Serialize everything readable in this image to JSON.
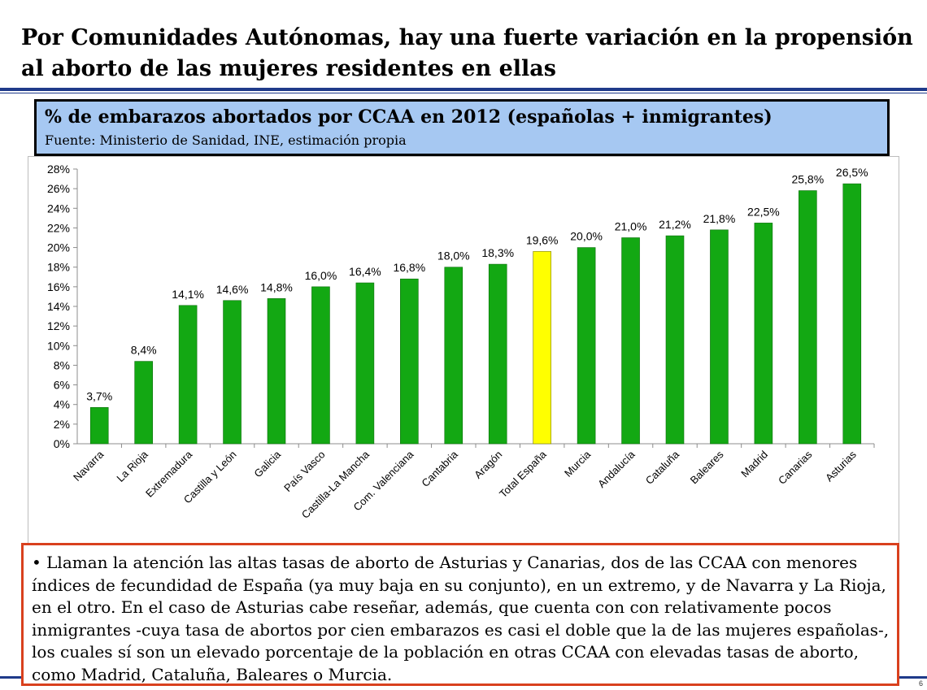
{
  "slide": {
    "title": "Por Comunidades Autónomas, hay una fuerte variación en la propensión al aborto de las mujeres residentes en ellas",
    "page_number": "6"
  },
  "header": {
    "title": "% de embarazos abortados por CCAA en 2012 (españolas + inmigrantes)",
    "source": "Fuente: Ministerio de Sanidad, INE, estimación propia"
  },
  "colors": {
    "bar": "#13a813",
    "highlight": "#ffff00",
    "header_bg": "#a6c8f2",
    "note_border": "#d9411e",
    "rule": "#1f3a8a"
  },
  "chart_data": {
    "type": "bar",
    "title": "% de embarazos abortados por CCAA en 2012 (españolas + inmigrantes)",
    "xlabel": "",
    "ylabel": "",
    "ylim": [
      0,
      28
    ],
    "y_ticks": [
      0,
      2,
      4,
      6,
      8,
      10,
      12,
      14,
      16,
      18,
      20,
      22,
      24,
      26,
      28
    ],
    "y_tick_labels": [
      "0%",
      "2%",
      "4%",
      "6%",
      "8%",
      "10%",
      "12%",
      "14%",
      "16%",
      "18%",
      "20%",
      "22%",
      "24%",
      "26%",
      "28%"
    ],
    "categories": [
      "Navarra",
      "La Rioja",
      "Extremadura",
      "Castilla y León",
      "Galicia",
      "País Vasco",
      "Castilla-La Mancha",
      "Com. Valenciana",
      "Cantabria",
      "Aragón",
      "Total España",
      "Murcia",
      "Andalucía",
      "Cataluña",
      "Baleares",
      "Madrid",
      "Canarias",
      "Asturias"
    ],
    "values": [
      3.7,
      8.4,
      14.1,
      14.6,
      14.8,
      16.0,
      16.4,
      16.8,
      18.0,
      18.3,
      19.6,
      20.0,
      21.0,
      21.2,
      21.8,
      22.5,
      25.8,
      26.5
    ],
    "data_labels": [
      "3,7%",
      "8,4%",
      "14,1%",
      "14,6%",
      "14,8%",
      "16,0%",
      "16,4%",
      "16,8%",
      "18,0%",
      "18,3%",
      "19,6%",
      "20,0%",
      "21,0%",
      "21,2%",
      "21,8%",
      "22,5%",
      "25,8%",
      "26,5%"
    ],
    "highlight_category": "Total España",
    "grid": false,
    "legend": "none"
  },
  "note": {
    "text": "• Llaman la atención las altas tasas de aborto de Asturias y Canarias, dos de las CCAA con menores índices de fecundidad de España (ya muy baja en su conjunto), en un extremo, y de Navarra y La Rioja, en el otro. En el caso de Asturias cabe reseñar, además, que cuenta con con relativamente pocos inmigrantes -cuya tasa de abortos por cien embarazos es casi el doble que la de las mujeres españolas-, los cuales sí son un elevado porcentaje de la población en otras CCAA con elevadas tasas de aborto, como Madrid, Cataluña, Baleares o Murcia."
  }
}
